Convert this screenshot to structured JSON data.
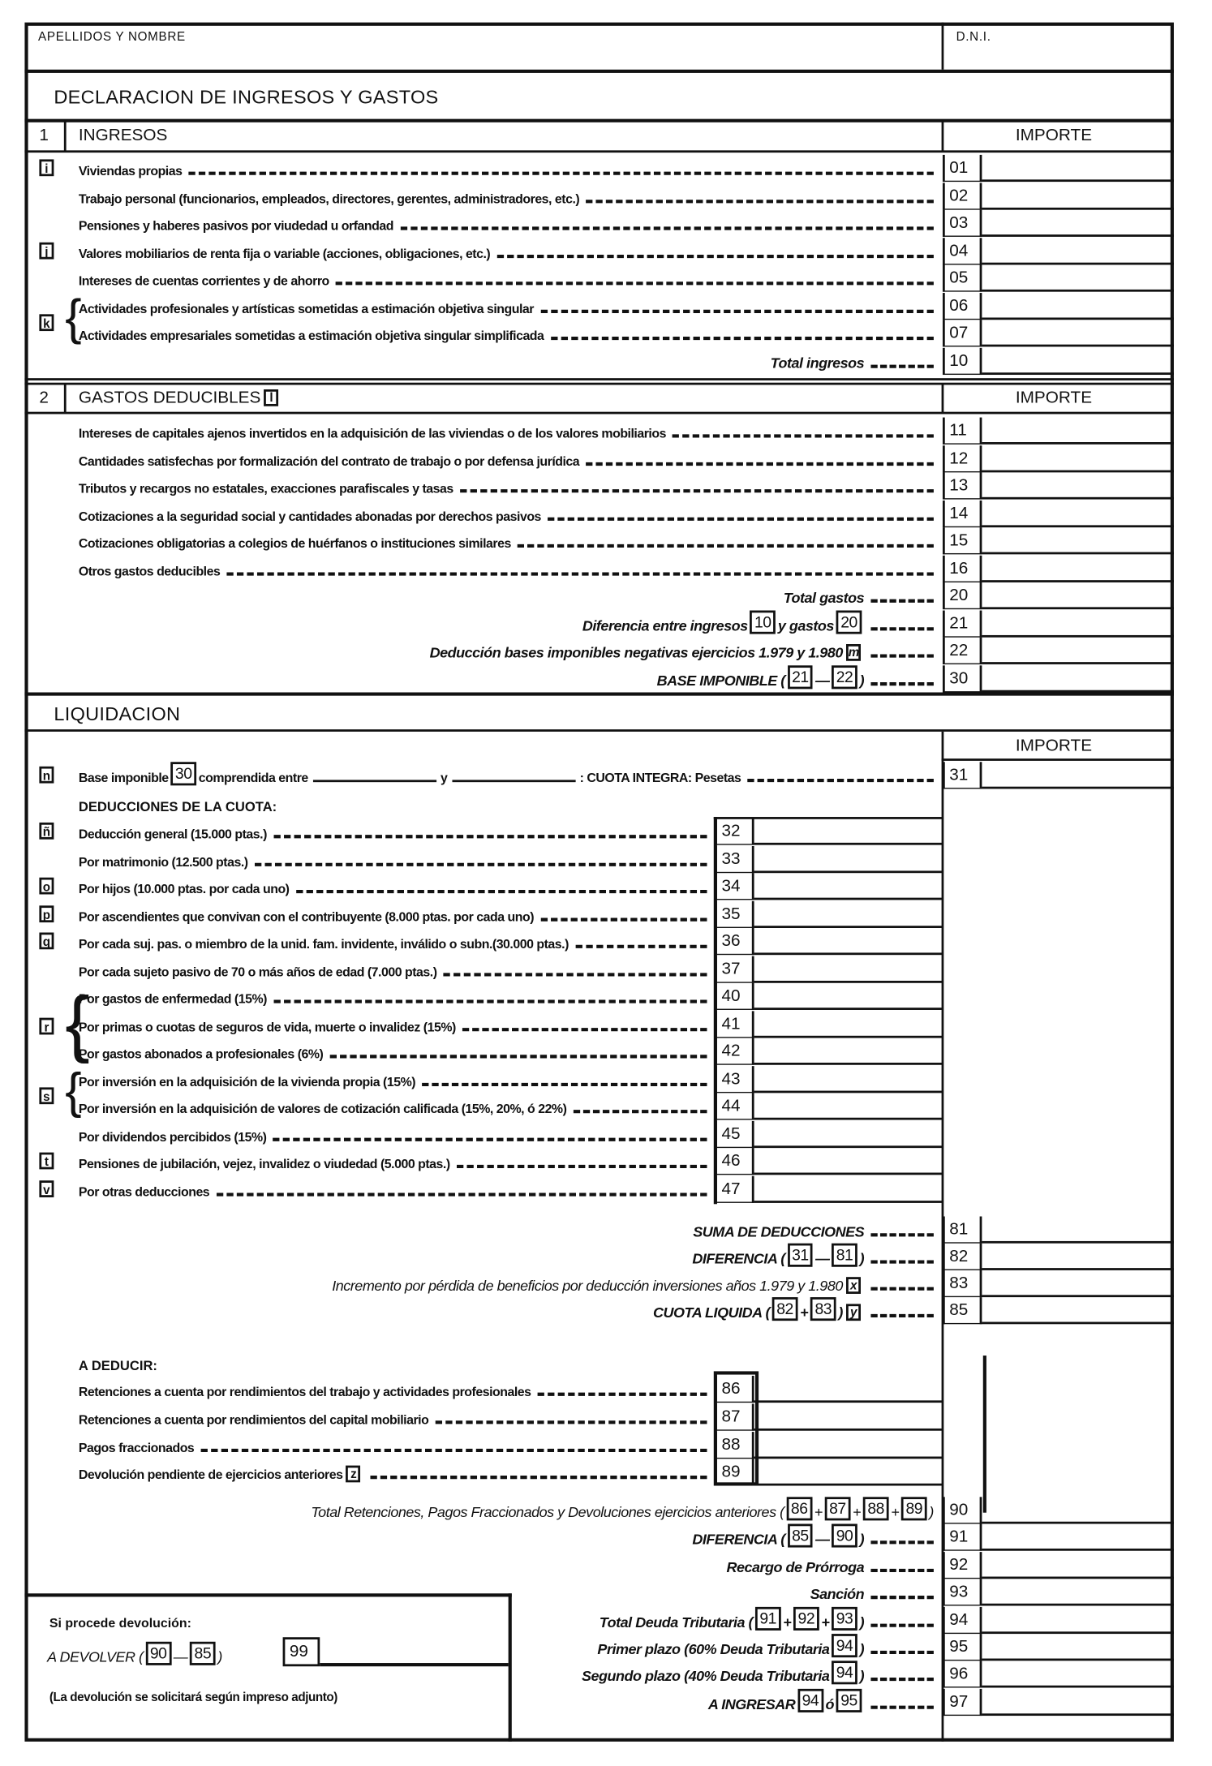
{
  "header": {
    "name_label": "APELLIDOS Y NOMBRE",
    "dni_label": "D.N.I."
  },
  "title": "DECLARACION DE INGRESOS Y GASTOS",
  "ingresos": {
    "number": "1",
    "title": "INGRESOS",
    "importe": "IMPORTE",
    "brace_marker": "k",
    "rows": [
      {
        "code": "01",
        "marker": "i",
        "label": "Viviendas propias"
      },
      {
        "code": "02",
        "label": "Trabajo personal (funcionarios, empleados, directores, gerentes, administradores, etc.)"
      },
      {
        "code": "03",
        "label": "Pensiones y haberes pasivos por viudedad u orfandad"
      },
      {
        "code": "04",
        "marker": "j",
        "label": "Valores mobiliarios de renta fija o variable (acciones, obligaciones, etc.)"
      },
      {
        "code": "05",
        "label": "Intereses de cuentas corrientes y de ahorro"
      },
      {
        "code": "06",
        "label": "Actividades profesionales y artísticas sometidas a estimación objetiva singular"
      },
      {
        "code": "07",
        "label": "Actividades empresariales sometidas a estimación objetiva singular simplificada"
      },
      {
        "code": "10",
        "total": true,
        "label": "Total ingresos"
      }
    ]
  },
  "gastos": {
    "number": "2",
    "title": "GASTOS DEDUCIBLES",
    "marker": "l",
    "importe": "IMPORTE",
    "rows": [
      {
        "code": "11",
        "label": "Intereses de capitales ajenos invertidos en la adquisición de las viviendas o de los valores mobiliarios"
      },
      {
        "code": "12",
        "label": "Cantidades satisfechas por formalización del contrato de trabajo o por defensa jurídica"
      },
      {
        "code": "13",
        "label": "Tributos y recargos no estatales, exacciones parafiscales y tasas"
      },
      {
        "code": "14",
        "label": "Cotizaciones a la seguridad social y cantidades abonadas por derechos pasivos"
      },
      {
        "code": "15",
        "label": "Cotizaciones obligatorias a colegios de huérfanos o instituciones similares"
      },
      {
        "code": "16",
        "label": "Otros gastos deducibles"
      },
      {
        "code": "20",
        "total": true,
        "label": "Total gastos"
      },
      {
        "code": "21",
        "total": true,
        "parts": [
          "Diferencia entre ingresos ",
          {
            "ref": "10"
          },
          " y gastos ",
          {
            "ref": "20"
          }
        ]
      },
      {
        "code": "22",
        "total": true,
        "parts": [
          "Deducción bases imponibles negativas ejercicios 1.979 y 1.980 ",
          {
            "marker": "m"
          }
        ]
      },
      {
        "code": "30",
        "total": true,
        "parts": [
          "BASE IMPONIBLE (",
          {
            "ref": "21"
          },
          " — ",
          {
            "ref": "22"
          },
          ")"
        ]
      }
    ]
  },
  "liquidacion": {
    "title": "LIQUIDACION",
    "importe": "IMPORTE",
    "cuota_row": {
      "code": "31",
      "marker": "n",
      "parts": [
        "Base imponible ",
        {
          "ref": "30"
        },
        " comprendida entre ",
        {
          "blank": true
        },
        " y ",
        {
          "blank": true
        },
        ": CUOTA INTEGRA: Pesetas"
      ]
    },
    "deducciones_title": "DEDUCCIONES DE LA CUOTA:",
    "brace_markers": [
      "r",
      "s"
    ],
    "deducciones": [
      {
        "code": "32",
        "marker": "ñ",
        "label": "Deducción general (15.000 ptas.)"
      },
      {
        "code": "33",
        "label": "Por matrimonio (12.500 ptas.)"
      },
      {
        "code": "34",
        "marker": "o",
        "label": "Por hijos (10.000 ptas. por cada uno)"
      },
      {
        "code": "35",
        "marker": "p",
        "label": "Por ascendientes que convivan con el contribuyente (8.000 ptas. por cada uno)"
      },
      {
        "code": "36",
        "marker": "q",
        "label": "Por cada suj. pas. o miembro de la unid. fam. invidente, inválido o subn.(30.000 ptas.)"
      },
      {
        "code": "37",
        "label": "Por cada sujeto pasivo de 70 o más años de edad (7.000 ptas.)"
      },
      {
        "code": "40",
        "label": "Por gastos de enfermedad (15%)"
      },
      {
        "code": "41",
        "label": "Por primas o cuotas de seguros de vida, muerte o invalidez (15%)"
      },
      {
        "code": "42",
        "label": "Por gastos abonados a profesionales (6%)"
      },
      {
        "code": "43",
        "label": "Por inversión en la adquisición de la vivienda propia (15%)"
      },
      {
        "code": "44",
        "label": "Por inversión en la adquisición de valores de cotización calificada (15%, 20%, ó 22%)"
      },
      {
        "code": "45",
        "label": "Por dividendos percibidos (15%)"
      },
      {
        "code": "46",
        "marker": "t",
        "label": "Pensiones de jubilación, vejez, invalidez o viudedad (5.000 ptas.)"
      },
      {
        "code": "47",
        "marker": "v",
        "label": "Por otras deducciones"
      }
    ],
    "totals": [
      {
        "code": "81",
        "label": "SUMA DE DEDUCCIONES"
      },
      {
        "code": "82",
        "parts": [
          "DIFERENCIA (",
          {
            "ref": "31"
          },
          " — ",
          {
            "ref": "81"
          },
          ")"
        ]
      },
      {
        "code": "83",
        "plain": true,
        "parts": [
          "Incremento por pérdida de beneficios por deducción inversiones años 1.979 y 1.980 ",
          {
            "marker": "x"
          }
        ]
      },
      {
        "code": "85",
        "parts": [
          "CUOTA LIQUIDA (",
          {
            "ref": "82"
          },
          "+",
          {
            "ref": "83"
          },
          ") ",
          {
            "marker": "y"
          }
        ]
      }
    ],
    "a_deducir_title": "A DEDUCIR:",
    "a_deducir": [
      {
        "code": "86",
        "label": "Retenciones a cuenta por rendimientos del trabajo y actividades profesionales"
      },
      {
        "code": "87",
        "label": "Retenciones a cuenta por rendimientos del capital mobiliario"
      },
      {
        "code": "88",
        "label": "Pagos fraccionados"
      },
      {
        "code": "89",
        "parts": [
          "Devolución pendiente de ejercicios anteriores ",
          {
            "marker": "z"
          }
        ]
      }
    ],
    "final": [
      {
        "code": "90",
        "plain": true,
        "noleader": true,
        "parts": [
          "Total Retenciones, Pagos Fraccionados y Devoluciones ejercicios anteriores (",
          {
            "ref": "86"
          },
          "+",
          {
            "ref": "87"
          },
          "+",
          {
            "ref": "88"
          },
          "+",
          {
            "ref": "89"
          },
          ")"
        ]
      },
      {
        "code": "91",
        "parts": [
          "DIFERENCIA (",
          {
            "ref": "85"
          },
          " — ",
          {
            "ref": "90"
          },
          ")"
        ]
      },
      {
        "code": "92",
        "label": "Recargo de Prórroga"
      },
      {
        "code": "93",
        "label": "Sanción"
      },
      {
        "code": "94",
        "parts": [
          "Total Deuda Tributaria (",
          {
            "ref": "91"
          },
          "+",
          {
            "ref": "92"
          },
          "+",
          {
            "ref": "93"
          },
          ")"
        ]
      },
      {
        "code": "95",
        "parts": [
          "Primer plazo (60% Deuda Tributaria ",
          {
            "ref": "94"
          },
          ")"
        ]
      },
      {
        "code": "96",
        "parts": [
          "Segundo plazo (40% Deuda Tributaria ",
          {
            "ref": "94"
          },
          ")"
        ]
      },
      {
        "code": "97",
        "parts": [
          "A INGRESAR ",
          {
            "ref": "94"
          },
          " ó ",
          {
            "ref": "95"
          }
        ]
      }
    ]
  },
  "devolucion": {
    "title": "Si procede devolución:",
    "label_parts": [
      "A DEVOLVER (",
      {
        "ref": "90"
      },
      "—",
      {
        "ref": "85"
      },
      ")"
    ],
    "code": "99",
    "note": "(La devolución se solicitará según impreso adjunto)"
  }
}
